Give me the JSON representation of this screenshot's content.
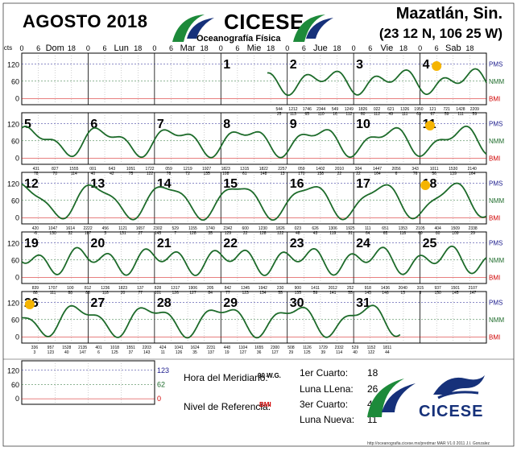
{
  "header": {
    "title": "AGOSTO 2018",
    "brand": "CICESE",
    "brand_sub": "Oceanografía Física",
    "location": "Mazatlán, Sin.",
    "coords": "(23 12 N, 106 25 W)"
  },
  "axis_top": {
    "cts_label": "cts",
    "hour_ticks": [
      "0",
      "6",
      "18",
      "0",
      "6",
      "18",
      "0",
      "6",
      "18",
      "0",
      "6",
      "18",
      "0",
      "6",
      "18",
      "0",
      "6",
      "18",
      "0",
      "6",
      "18"
    ],
    "day_names": [
      "Dom",
      "Lun",
      "Mar",
      "Mie",
      "Jue",
      "Vie",
      "Sab"
    ]
  },
  "right_labels": {
    "pms": "PMS",
    "nmm": "NMM",
    "bmi": "BMI"
  },
  "y_ticks": [
    "120",
    "60",
    "0"
  ],
  "legend_panel": {
    "ticks_left": [
      "120",
      "60",
      "0"
    ],
    "ticks_right": [
      "123",
      "62",
      "0"
    ]
  },
  "info": {
    "meridian_label": "Hora del Meridiano:",
    "meridian_value": "90 W.G.",
    "reference_label": "Nivel de Referencia:",
    "reference_value": "BMI",
    "moon_phases": [
      {
        "label": "1er Cuarto:",
        "value": "18"
      },
      {
        "label": "Luna LLena:",
        "value": "26"
      },
      {
        "label": "3er Cuarto:",
        "value": "4"
      },
      {
        "label": "Luna Nueva:",
        "value": "11"
      }
    ]
  },
  "logo_text": "CICESE",
  "footer": "http://oceanografia.cicese.mx/predmar MAR V1.0 2011 J.I. Gonzalez",
  "colors": {
    "curve": "#1d6b2a",
    "pms": "#1a1a8c",
    "nmm": "#1d6b2a",
    "bmi": "#d00000",
    "moon": "#f5b400"
  },
  "chart_data": {
    "type": "line",
    "title": "AGOSTO 2018",
    "ylabel": "cts",
    "ylim": [
      -10,
      150
    ],
    "levels": {
      "PMS": 123,
      "NMM": 62,
      "BMI": 0
    },
    "weeks": [
      {
        "days": [
          "",
          "",
          "",
          "1",
          "2",
          "3",
          "4"
        ],
        "start_day_offset": 3.7,
        "amp_diurnal": 25,
        "amp_semi": 25,
        "extremes": [
          "544 25",
          "1212 113",
          "1746 65",
          "2344 110",
          "549 16",
          "1249 112",
          "1826 60",
          "022 112",
          "621 49",
          "1326 111",
          "1950 63",
          "121 67",
          "721 59",
          "1428 111",
          "2209 59"
        ]
      },
      {
        "days": [
          "5",
          "6",
          "7",
          "8",
          "9",
          "10",
          "11"
        ],
        "start_day_offset": 0,
        "amp_diurnal": 40,
        "amp_semi": 20,
        "extremes": [
          "431 78",
          "827 70",
          "1555 114",
          "001 40",
          "643 42",
          "1051 75",
          "1722 122",
          "059 78",
          "1219 72",
          "1927 135",
          "1823 108",
          "1315 61",
          "1822 148",
          "2257 13",
          "059 170",
          "1402 158",
          "2010 22",
          "304 22",
          "1447 164",
          "2056 6",
          "343 76",
          "1011 56",
          "1530 139",
          "2140 164"
        ]
      },
      {
        "days": [
          "12",
          "13",
          "14",
          "15",
          "16",
          "17",
          "18"
        ],
        "start_day_offset": 0,
        "amp_diurnal": 55,
        "amp_semi": 15,
        "extremes": [
          "420 -6",
          "1047 130",
          "1614 32",
          "2222 187",
          "456 5",
          "1121 131",
          "1657 27",
          "2302 145",
          "529 7",
          "1155 128",
          "1740 35",
          "2342 129",
          "600 22",
          "1230 128",
          "1826 122",
          "023 48",
          "626 43",
          "1306 119",
          "1925 91",
          "111 64",
          "651 65",
          "1353 116",
          "2105 69",
          "404 60",
          "1509 109",
          "2338 29"
        ]
      },
      {
        "days": [
          "19",
          "20",
          "21",
          "22",
          "23",
          "24",
          "25"
        ],
        "start_day_offset": 0,
        "amp_diurnal": 25,
        "amp_semi": 30,
        "extremes": [
          "839 88",
          "1707 111",
          "100 88",
          "812 83",
          "1236 118",
          "1823 20",
          "137 77",
          "828 101",
          "1317 126",
          "1906 127",
          "205 84",
          "842 77",
          "1345 123",
          "1942 134",
          "230 55",
          "900 135",
          "1411 59",
          "2012 141",
          "252 55",
          "918 145",
          "1436 146",
          "2040 15",
          "315 3",
          "937 150",
          "1501 145",
          "2107 147"
        ]
      },
      {
        "days": [
          "26",
          "27",
          "28",
          "29",
          "30",
          "31",
          ""
        ],
        "start_day_offset": 0,
        "end_day_offset": 5.7,
        "amp_diurnal": 45,
        "amp_semi": 20,
        "extremes": [
          "336 3",
          "957 123",
          "1528 40",
          "2135 147",
          "401 6",
          "1018 125",
          "1551 37",
          "2203 143",
          "424 11",
          "1041 126",
          "1624 35",
          "2231 137",
          "448 19",
          "1104 127",
          "1655 36",
          "2300 127",
          "508 29",
          "1126 125",
          "1729 39",
          "2332 114",
          "529 40",
          "1152 122",
          "1811 44"
        ]
      }
    ]
  }
}
